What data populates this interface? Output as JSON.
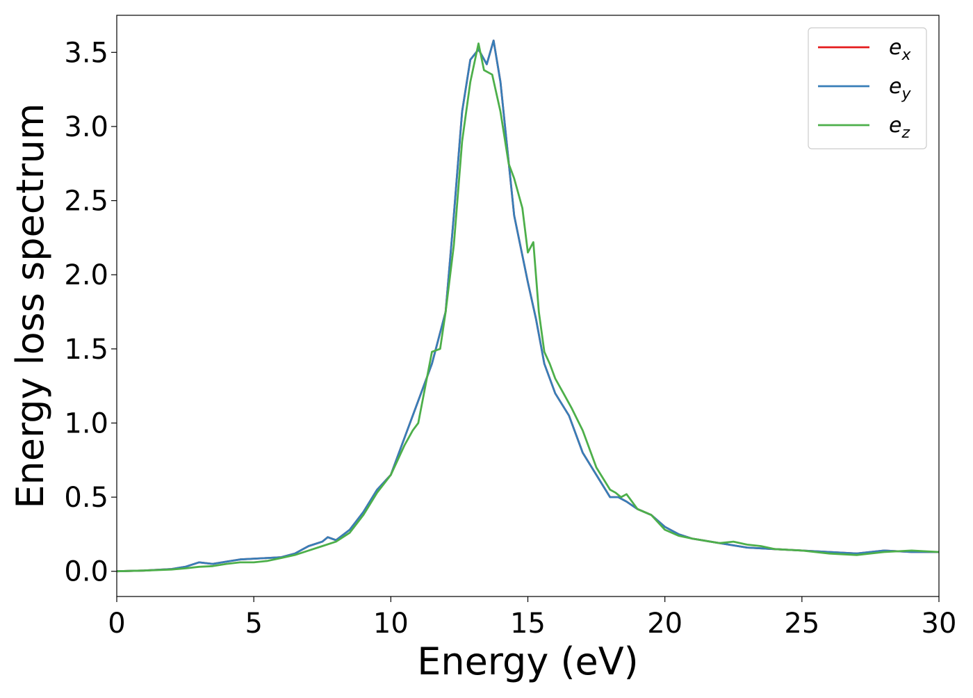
{
  "chart_data": {
    "type": "line",
    "title": "",
    "xlabel": "Energy (eV)",
    "ylabel": "Energy loss spectrum",
    "xlim": [
      0,
      30
    ],
    "ylim": [
      -0.17,
      3.75
    ],
    "xticks": [
      0,
      5,
      10,
      15,
      20,
      25,
      30
    ],
    "xtick_labels": [
      "0",
      "5",
      "10",
      "15",
      "20",
      "25",
      "30"
    ],
    "yticks": [
      0.0,
      0.5,
      1.0,
      1.5,
      2.0,
      2.5,
      3.0,
      3.5
    ],
    "ytick_labels": [
      "0.0",
      "0.5",
      "1.0",
      "1.5",
      "2.0",
      "2.5",
      "3.0",
      "3.5"
    ],
    "grid": false,
    "legend_position": "top-right",
    "series": [
      {
        "name": "e_x",
        "color": "#e41a1c",
        "x": [
          0,
          1,
          2,
          2.5,
          3,
          3.5,
          4,
          4.5,
          5,
          5.5,
          6,
          6.5,
          7,
          7.5,
          7.7,
          8,
          8.5,
          9,
          9.5,
          10,
          10.5,
          11,
          11.5,
          12,
          12.3,
          12.6,
          12.9,
          13.2,
          13.5,
          13.75,
          14,
          14.5,
          15,
          15.3,
          15.6,
          16,
          16.5,
          17,
          17.5,
          18,
          18.3,
          18.6,
          19,
          19.5,
          20,
          20.5,
          21,
          22,
          23,
          24,
          25,
          26,
          27,
          28,
          29,
          30
        ],
        "y": [
          0,
          0.005,
          0.015,
          0.03,
          0.06,
          0.05,
          0.065,
          0.08,
          0.085,
          0.09,
          0.095,
          0.12,
          0.17,
          0.2,
          0.23,
          0.21,
          0.28,
          0.4,
          0.55,
          0.65,
          0.9,
          1.15,
          1.4,
          1.75,
          2.4,
          3.1,
          3.45,
          3.52,
          3.42,
          3.58,
          3.3,
          2.4,
          1.95,
          1.7,
          1.4,
          1.2,
          1.05,
          0.8,
          0.65,
          0.5,
          0.5,
          0.47,
          0.42,
          0.38,
          0.3,
          0.25,
          0.22,
          0.19,
          0.16,
          0.15,
          0.14,
          0.13,
          0.12,
          0.14,
          0.13,
          0.13
        ]
      },
      {
        "name": "e_y",
        "color": "#377eb8",
        "x": [
          0,
          1,
          2,
          2.5,
          3,
          3.5,
          4,
          4.5,
          5,
          5.5,
          6,
          6.5,
          7,
          7.5,
          7.7,
          8,
          8.5,
          9,
          9.5,
          10,
          10.5,
          11,
          11.5,
          12,
          12.3,
          12.6,
          12.9,
          13.2,
          13.5,
          13.75,
          14,
          14.5,
          15,
          15.3,
          15.6,
          16,
          16.5,
          17,
          17.5,
          18,
          18.3,
          18.6,
          19,
          19.5,
          20,
          20.5,
          21,
          22,
          23,
          24,
          25,
          26,
          27,
          28,
          29,
          30
        ],
        "y": [
          0,
          0.005,
          0.015,
          0.03,
          0.06,
          0.05,
          0.065,
          0.08,
          0.085,
          0.09,
          0.095,
          0.12,
          0.17,
          0.2,
          0.23,
          0.21,
          0.28,
          0.4,
          0.55,
          0.65,
          0.9,
          1.15,
          1.4,
          1.75,
          2.4,
          3.1,
          3.45,
          3.52,
          3.42,
          3.58,
          3.3,
          2.4,
          1.95,
          1.7,
          1.4,
          1.2,
          1.05,
          0.8,
          0.65,
          0.5,
          0.5,
          0.47,
          0.42,
          0.38,
          0.3,
          0.25,
          0.22,
          0.19,
          0.16,
          0.15,
          0.14,
          0.13,
          0.12,
          0.14,
          0.13,
          0.13
        ]
      },
      {
        "name": "e_z",
        "color": "#4daf4a",
        "x": [
          0,
          1,
          2,
          2.5,
          3,
          3.5,
          4,
          4.5,
          5,
          5.5,
          6,
          6.5,
          7,
          7.5,
          8,
          8.5,
          9,
          9.5,
          10,
          10.5,
          10.8,
          11,
          11.5,
          11.8,
          12,
          12.3,
          12.6,
          12.9,
          13.2,
          13.4,
          13.7,
          14,
          14.3,
          14.5,
          14.8,
          15,
          15.2,
          15.4,
          15.6,
          15.8,
          16,
          16.3,
          16.6,
          17,
          17.5,
          18,
          18.2,
          18.4,
          18.6,
          19,
          19.5,
          20,
          20.5,
          21,
          22,
          22.5,
          23,
          23.5,
          24,
          25,
          26,
          27,
          28,
          29,
          30
        ],
        "y": [
          0,
          0.005,
          0.012,
          0.02,
          0.03,
          0.035,
          0.05,
          0.06,
          0.06,
          0.07,
          0.09,
          0.11,
          0.14,
          0.17,
          0.2,
          0.26,
          0.38,
          0.53,
          0.65,
          0.85,
          0.95,
          1.0,
          1.48,
          1.5,
          1.75,
          2.2,
          2.9,
          3.3,
          3.56,
          3.38,
          3.35,
          3.1,
          2.75,
          2.65,
          2.45,
          2.15,
          2.22,
          1.75,
          1.48,
          1.4,
          1.3,
          1.2,
          1.1,
          0.95,
          0.7,
          0.55,
          0.53,
          0.5,
          0.52,
          0.42,
          0.38,
          0.28,
          0.24,
          0.22,
          0.19,
          0.2,
          0.18,
          0.17,
          0.15,
          0.14,
          0.12,
          0.11,
          0.13,
          0.14,
          0.13
        ]
      }
    ]
  },
  "legend": {
    "entries": [
      {
        "base": "e",
        "sub": "x"
      },
      {
        "base": "e",
        "sub": "y"
      },
      {
        "base": "e",
        "sub": "z"
      }
    ]
  }
}
